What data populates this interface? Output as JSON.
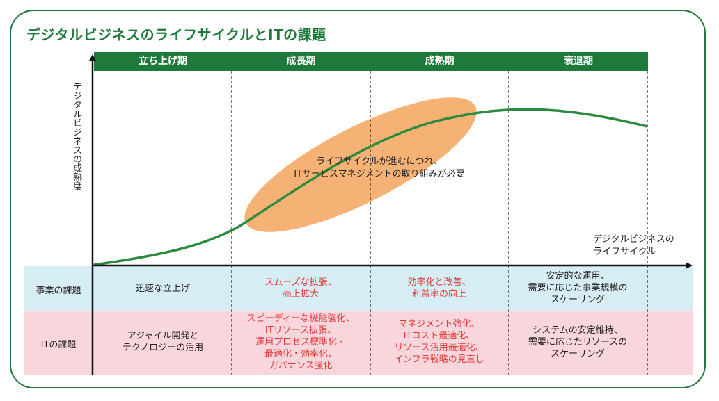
{
  "title": "デジタルビジネスのライフサイクルとITの課題",
  "phases": [
    "立ち上げ期",
    "成長期",
    "成熟期",
    "衰退期"
  ],
  "y_axis_label": "デジタルビジネスの成熟度",
  "x_axis_label": "デジタルビジネスの\nライフサイクル",
  "annotation": "ライフサイクルが進むにつれ、\nITサービスマネジメントの取り組みが必要",
  "rows": [
    {
      "label": "事業の課題",
      "cells": [
        {
          "text": "迅速な立上げ",
          "color": "black"
        },
        {
          "text": "スムーズな拡張、\n売上拡大",
          "color": "red"
        },
        {
          "text": "効率化と改善、\n利益率の向上",
          "color": "red"
        },
        {
          "text": "安定的な運用、\n需要に応じた事業規模の\nスケーリング",
          "color": "black"
        }
      ]
    },
    {
      "label": "ITの課題",
      "cells": [
        {
          "text": "アジャイル開発と\nテクノロジーの活用",
          "color": "black"
        },
        {
          "text": "スピーディーな機能強化、\nITリソース拡張、\n運用プロセス標準化・\n最適化・効率化、\nガバナンス強化",
          "color": "red"
        },
        {
          "text": "マネジメント強化、\nITコスト最適化、\nリソース活用最適化、\nインフラ戦略の見直し",
          "color": "red"
        },
        {
          "text": "システムの安定維持、\n需要に応じたリソースの\nスケーリング",
          "color": "black"
        }
      ]
    }
  ],
  "colors": {
    "brand_green": "#1e7a3a",
    "highlight_orange": "#f5a55c",
    "business_row_bg": "#d6edf4",
    "it_row_bg": "#f9d6dc",
    "emphasis_red": "#e03a3a"
  }
}
